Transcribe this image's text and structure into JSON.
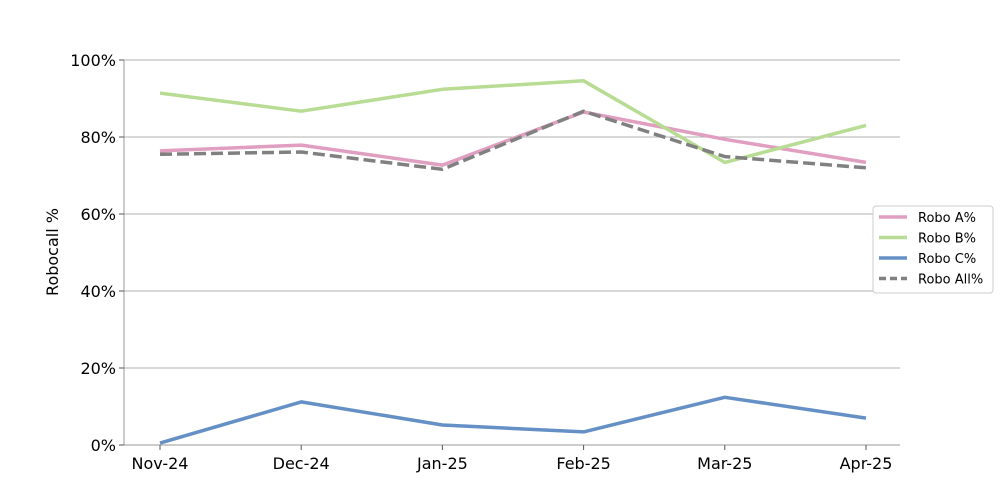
{
  "chart_data": {
    "type": "line",
    "title": "",
    "xlabel": "",
    "ylabel": "Robocall %",
    "categories": [
      "Nov-24",
      "Dec-24",
      "Jan-25",
      "Feb-25",
      "Mar-25",
      "Apr-25"
    ],
    "ylim": [
      0,
      100
    ],
    "yticks": [
      "0%",
      "20%",
      "40%",
      "60%",
      "80%",
      "100%"
    ],
    "ytick_values": [
      0,
      20,
      40,
      60,
      80,
      100
    ],
    "grid": "horizontal",
    "legend_position": "right",
    "series": [
      {
        "name": "Robo A%",
        "color": "#e09ec0",
        "dash": "solid",
        "values": [
          76.4,
          77.9,
          72.7,
          86.5,
          79.4,
          73.4
        ]
      },
      {
        "name": "Robo B%",
        "color": "#b8dc94",
        "dash": "solid",
        "values": [
          91.4,
          86.7,
          92.4,
          94.6,
          73.4,
          83.0
        ]
      },
      {
        "name": "Robo C%",
        "color": "#6590c6",
        "dash": "solid",
        "values": [
          0.5,
          11.2,
          5.2,
          3.4,
          12.4,
          7.0
        ]
      },
      {
        "name": "Robo All%",
        "color": "#808080",
        "dash": "dashed",
        "values": [
          75.5,
          76.1,
          71.6,
          86.7,
          74.9,
          72.0
        ]
      }
    ]
  }
}
